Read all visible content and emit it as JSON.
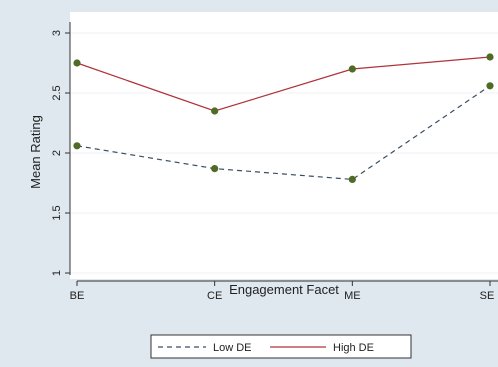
{
  "chart_data": {
    "type": "line",
    "title": "",
    "xlabel": "Engagement Facet",
    "ylabel": "Mean Rating",
    "categories": [
      "BE",
      "CE",
      "ME",
      "SE"
    ],
    "ylim": [
      1,
      3
    ],
    "yticks": [
      "1",
      "1.5",
      "2",
      "2.5",
      "3"
    ],
    "grid": true,
    "legend_position": "bottom",
    "series": [
      {
        "name": "Low DE",
        "values": [
          2.06,
          1.87,
          1.78,
          2.56
        ],
        "color": "#3b4e63",
        "style": "dashed"
      },
      {
        "name": "High DE",
        "values": [
          2.75,
          2.35,
          2.7,
          2.8
        ],
        "color": "#b0323a",
        "style": "solid"
      }
    ],
    "marker_color": "#4f6b26",
    "plot_background": "#ffffff",
    "outer_background": "#dfe7ef"
  }
}
